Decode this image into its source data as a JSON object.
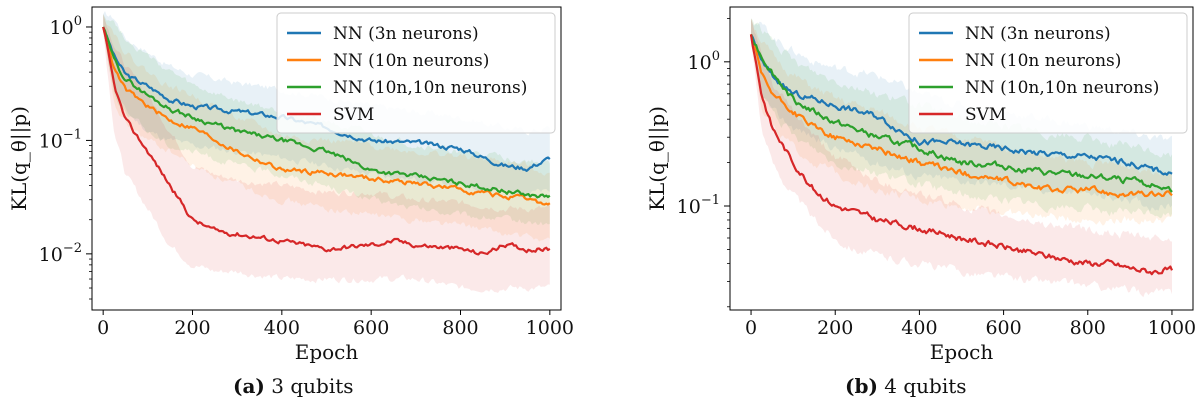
{
  "chart_data": [
    {
      "type": "line",
      "caption_label": "(a)",
      "caption_text": "3 qubits",
      "xlabel": "Epoch",
      "ylabel": "KL(q_θ||p)",
      "yscale": "log",
      "xlim": [
        -25,
        1025
      ],
      "ylim": [
        0.0032,
        1.5
      ],
      "xticks": [
        0,
        200,
        400,
        600,
        800,
        1000
      ],
      "yticks": [
        {
          "value": 0.01,
          "base": "10",
          "exp": "−2"
        },
        {
          "value": 0.1,
          "base": "10",
          "exp": "−1"
        },
        {
          "value": 1,
          "base": "10",
          "exp": "0"
        }
      ],
      "legend_position": "top-right",
      "series": [
        {
          "name": "NN (3n neurons)",
          "color": "#1f77b4",
          "x": [
            0,
            25,
            50,
            100,
            150,
            200,
            300,
            400,
            500,
            600,
            700,
            800,
            900,
            950,
            1000
          ],
          "y": [
            1.0,
            0.55,
            0.38,
            0.3,
            0.23,
            0.2,
            0.18,
            0.16,
            0.13,
            0.1,
            0.095,
            0.085,
            0.06,
            0.057,
            0.07
          ],
          "lower": [
            0.9,
            0.3,
            0.18,
            0.12,
            0.1,
            0.09,
            0.08,
            0.07,
            0.06,
            0.05,
            0.045,
            0.04,
            0.035,
            0.035,
            0.035
          ],
          "upper": [
            1.3,
            1.2,
            0.8,
            0.6,
            0.45,
            0.38,
            0.32,
            0.28,
            0.24,
            0.2,
            0.18,
            0.16,
            0.13,
            0.12,
            0.13
          ]
        },
        {
          "name": "NN (10n neurons)",
          "color": "#ff7f0e",
          "x": [
            0,
            25,
            50,
            100,
            150,
            200,
            300,
            400,
            500,
            600,
            700,
            800,
            900,
            950,
            1000
          ],
          "y": [
            1.0,
            0.42,
            0.28,
            0.2,
            0.15,
            0.13,
            0.08,
            0.055,
            0.052,
            0.046,
            0.042,
            0.037,
            0.032,
            0.03,
            0.027
          ],
          "lower": [
            0.9,
            0.2,
            0.14,
            0.1,
            0.08,
            0.06,
            0.04,
            0.03,
            0.025,
            0.022,
            0.02,
            0.018,
            0.015,
            0.014,
            0.013
          ],
          "upper": [
            1.3,
            0.9,
            0.6,
            0.4,
            0.3,
            0.25,
            0.16,
            0.11,
            0.1,
            0.09,
            0.08,
            0.072,
            0.065,
            0.06,
            0.05
          ]
        },
        {
          "name": "NN (10n,10n neurons)",
          "color": "#2ca02c",
          "x": [
            0,
            25,
            50,
            100,
            150,
            200,
            300,
            400,
            500,
            600,
            700,
            800,
            900,
            950,
            1000
          ],
          "y": [
            1.0,
            0.5,
            0.35,
            0.25,
            0.19,
            0.16,
            0.12,
            0.1,
            0.08,
            0.055,
            0.048,
            0.042,
            0.036,
            0.033,
            0.032
          ],
          "lower": [
            0.9,
            0.25,
            0.18,
            0.12,
            0.09,
            0.08,
            0.06,
            0.05,
            0.04,
            0.03,
            0.025,
            0.022,
            0.02,
            0.019,
            0.018
          ],
          "upper": [
            1.3,
            1.1,
            0.8,
            0.55,
            0.4,
            0.3,
            0.22,
            0.18,
            0.15,
            0.11,
            0.09,
            0.08,
            0.07,
            0.066,
            0.062
          ]
        },
        {
          "name": "SVM",
          "color": "#d62728",
          "x": [
            0,
            25,
            50,
            100,
            150,
            200,
            250,
            300,
            400,
            500,
            600,
            650,
            700,
            800,
            850,
            900,
            950,
            1000
          ],
          "y": [
            1.0,
            0.3,
            0.15,
            0.08,
            0.04,
            0.02,
            0.016,
            0.015,
            0.013,
            0.011,
            0.012,
            0.013,
            0.012,
            0.011,
            0.01,
            0.012,
            0.011,
            0.011
          ],
          "lower": [
            0.9,
            0.12,
            0.05,
            0.025,
            0.012,
            0.008,
            0.007,
            0.007,
            0.006,
            0.006,
            0.006,
            0.006,
            0.006,
            0.005,
            0.005,
            0.005,
            0.005,
            0.005
          ],
          "upper": [
            1.3,
            0.7,
            0.45,
            0.25,
            0.12,
            0.06,
            0.05,
            0.045,
            0.04,
            0.035,
            0.035,
            0.032,
            0.03,
            0.028,
            0.027,
            0.025,
            0.025,
            0.025
          ]
        }
      ]
    },
    {
      "type": "line",
      "caption_label": "(b)",
      "caption_text": "4 qubits",
      "xlabel": "Epoch",
      "ylabel": "KL(q_θ||p)",
      "yscale": "log",
      "xlim": [
        -50,
        1050
      ],
      "ylim": [
        0.019,
        2.4
      ],
      "xticks": [
        0,
        200,
        400,
        600,
        800,
        1000
      ],
      "yticks": [
        {
          "value": 0.1,
          "base": "10",
          "exp": "−1"
        },
        {
          "value": 1,
          "base": "10",
          "exp": "0"
        }
      ],
      "legend_position": "top-right",
      "series": [
        {
          "name": "NN (3n neurons)",
          "color": "#1f77b4",
          "x": [
            0,
            25,
            50,
            100,
            150,
            200,
            300,
            400,
            500,
            600,
            700,
            800,
            900,
            950,
            1000
          ],
          "y": [
            1.55,
            1.0,
            0.8,
            0.6,
            0.55,
            0.5,
            0.42,
            0.28,
            0.27,
            0.25,
            0.23,
            0.22,
            0.2,
            0.18,
            0.17
          ],
          "lower": [
            1.4,
            0.6,
            0.45,
            0.35,
            0.3,
            0.25,
            0.2,
            0.16,
            0.15,
            0.14,
            0.13,
            0.12,
            0.11,
            0.1,
            0.1
          ],
          "upper": [
            2.0,
            1.8,
            1.5,
            1.2,
            1.0,
            0.9,
            0.8,
            0.6,
            0.5,
            0.45,
            0.4,
            0.36,
            0.32,
            0.3,
            0.28
          ]
        },
        {
          "name": "NN (10n neurons)",
          "color": "#ff7f0e",
          "x": [
            0,
            25,
            50,
            100,
            150,
            200,
            300,
            400,
            500,
            600,
            700,
            800,
            900,
            950,
            1000
          ],
          "y": [
            1.55,
            0.8,
            0.6,
            0.45,
            0.35,
            0.3,
            0.25,
            0.2,
            0.17,
            0.15,
            0.13,
            0.13,
            0.12,
            0.12,
            0.12
          ],
          "lower": [
            1.4,
            0.5,
            0.35,
            0.25,
            0.2,
            0.17,
            0.13,
            0.11,
            0.1,
            0.09,
            0.085,
            0.08,
            0.08,
            0.08,
            0.08
          ],
          "upper": [
            2.0,
            1.4,
            1.1,
            0.8,
            0.65,
            0.55,
            0.45,
            0.35,
            0.3,
            0.26,
            0.22,
            0.2,
            0.19,
            0.18,
            0.18
          ]
        },
        {
          "name": "NN (10n,10n neurons)",
          "color": "#2ca02c",
          "x": [
            0,
            25,
            50,
            100,
            150,
            200,
            300,
            400,
            500,
            600,
            700,
            800,
            900,
            950,
            1000
          ],
          "y": [
            1.55,
            1.1,
            0.85,
            0.55,
            0.45,
            0.38,
            0.3,
            0.25,
            0.2,
            0.19,
            0.17,
            0.16,
            0.15,
            0.14,
            0.13
          ],
          "lower": [
            1.4,
            0.6,
            0.45,
            0.3,
            0.25,
            0.2,
            0.17,
            0.14,
            0.12,
            0.11,
            0.1,
            0.095,
            0.09,
            0.09,
            0.085
          ],
          "upper": [
            2.0,
            1.7,
            1.4,
            1.0,
            0.85,
            0.75,
            0.6,
            0.5,
            0.4,
            0.36,
            0.32,
            0.29,
            0.26,
            0.24,
            0.22
          ]
        },
        {
          "name": "SVM",
          "color": "#d62728",
          "x": [
            0,
            25,
            50,
            100,
            150,
            200,
            250,
            300,
            400,
            500,
            600,
            700,
            800,
            850,
            900,
            950,
            1000
          ],
          "y": [
            1.55,
            0.6,
            0.35,
            0.2,
            0.13,
            0.1,
            0.09,
            0.08,
            0.07,
            0.06,
            0.052,
            0.045,
            0.04,
            0.04,
            0.037,
            0.035,
            0.036
          ],
          "lower": [
            1.4,
            0.35,
            0.2,
            0.12,
            0.08,
            0.06,
            0.05,
            0.045,
            0.04,
            0.035,
            0.032,
            0.03,
            0.028,
            0.027,
            0.026,
            0.025,
            0.025
          ],
          "upper": [
            2.0,
            1.1,
            0.7,
            0.45,
            0.3,
            0.22,
            0.18,
            0.15,
            0.12,
            0.1,
            0.085,
            0.075,
            0.068,
            0.065,
            0.062,
            0.06,
            0.058
          ]
        }
      ]
    }
  ]
}
